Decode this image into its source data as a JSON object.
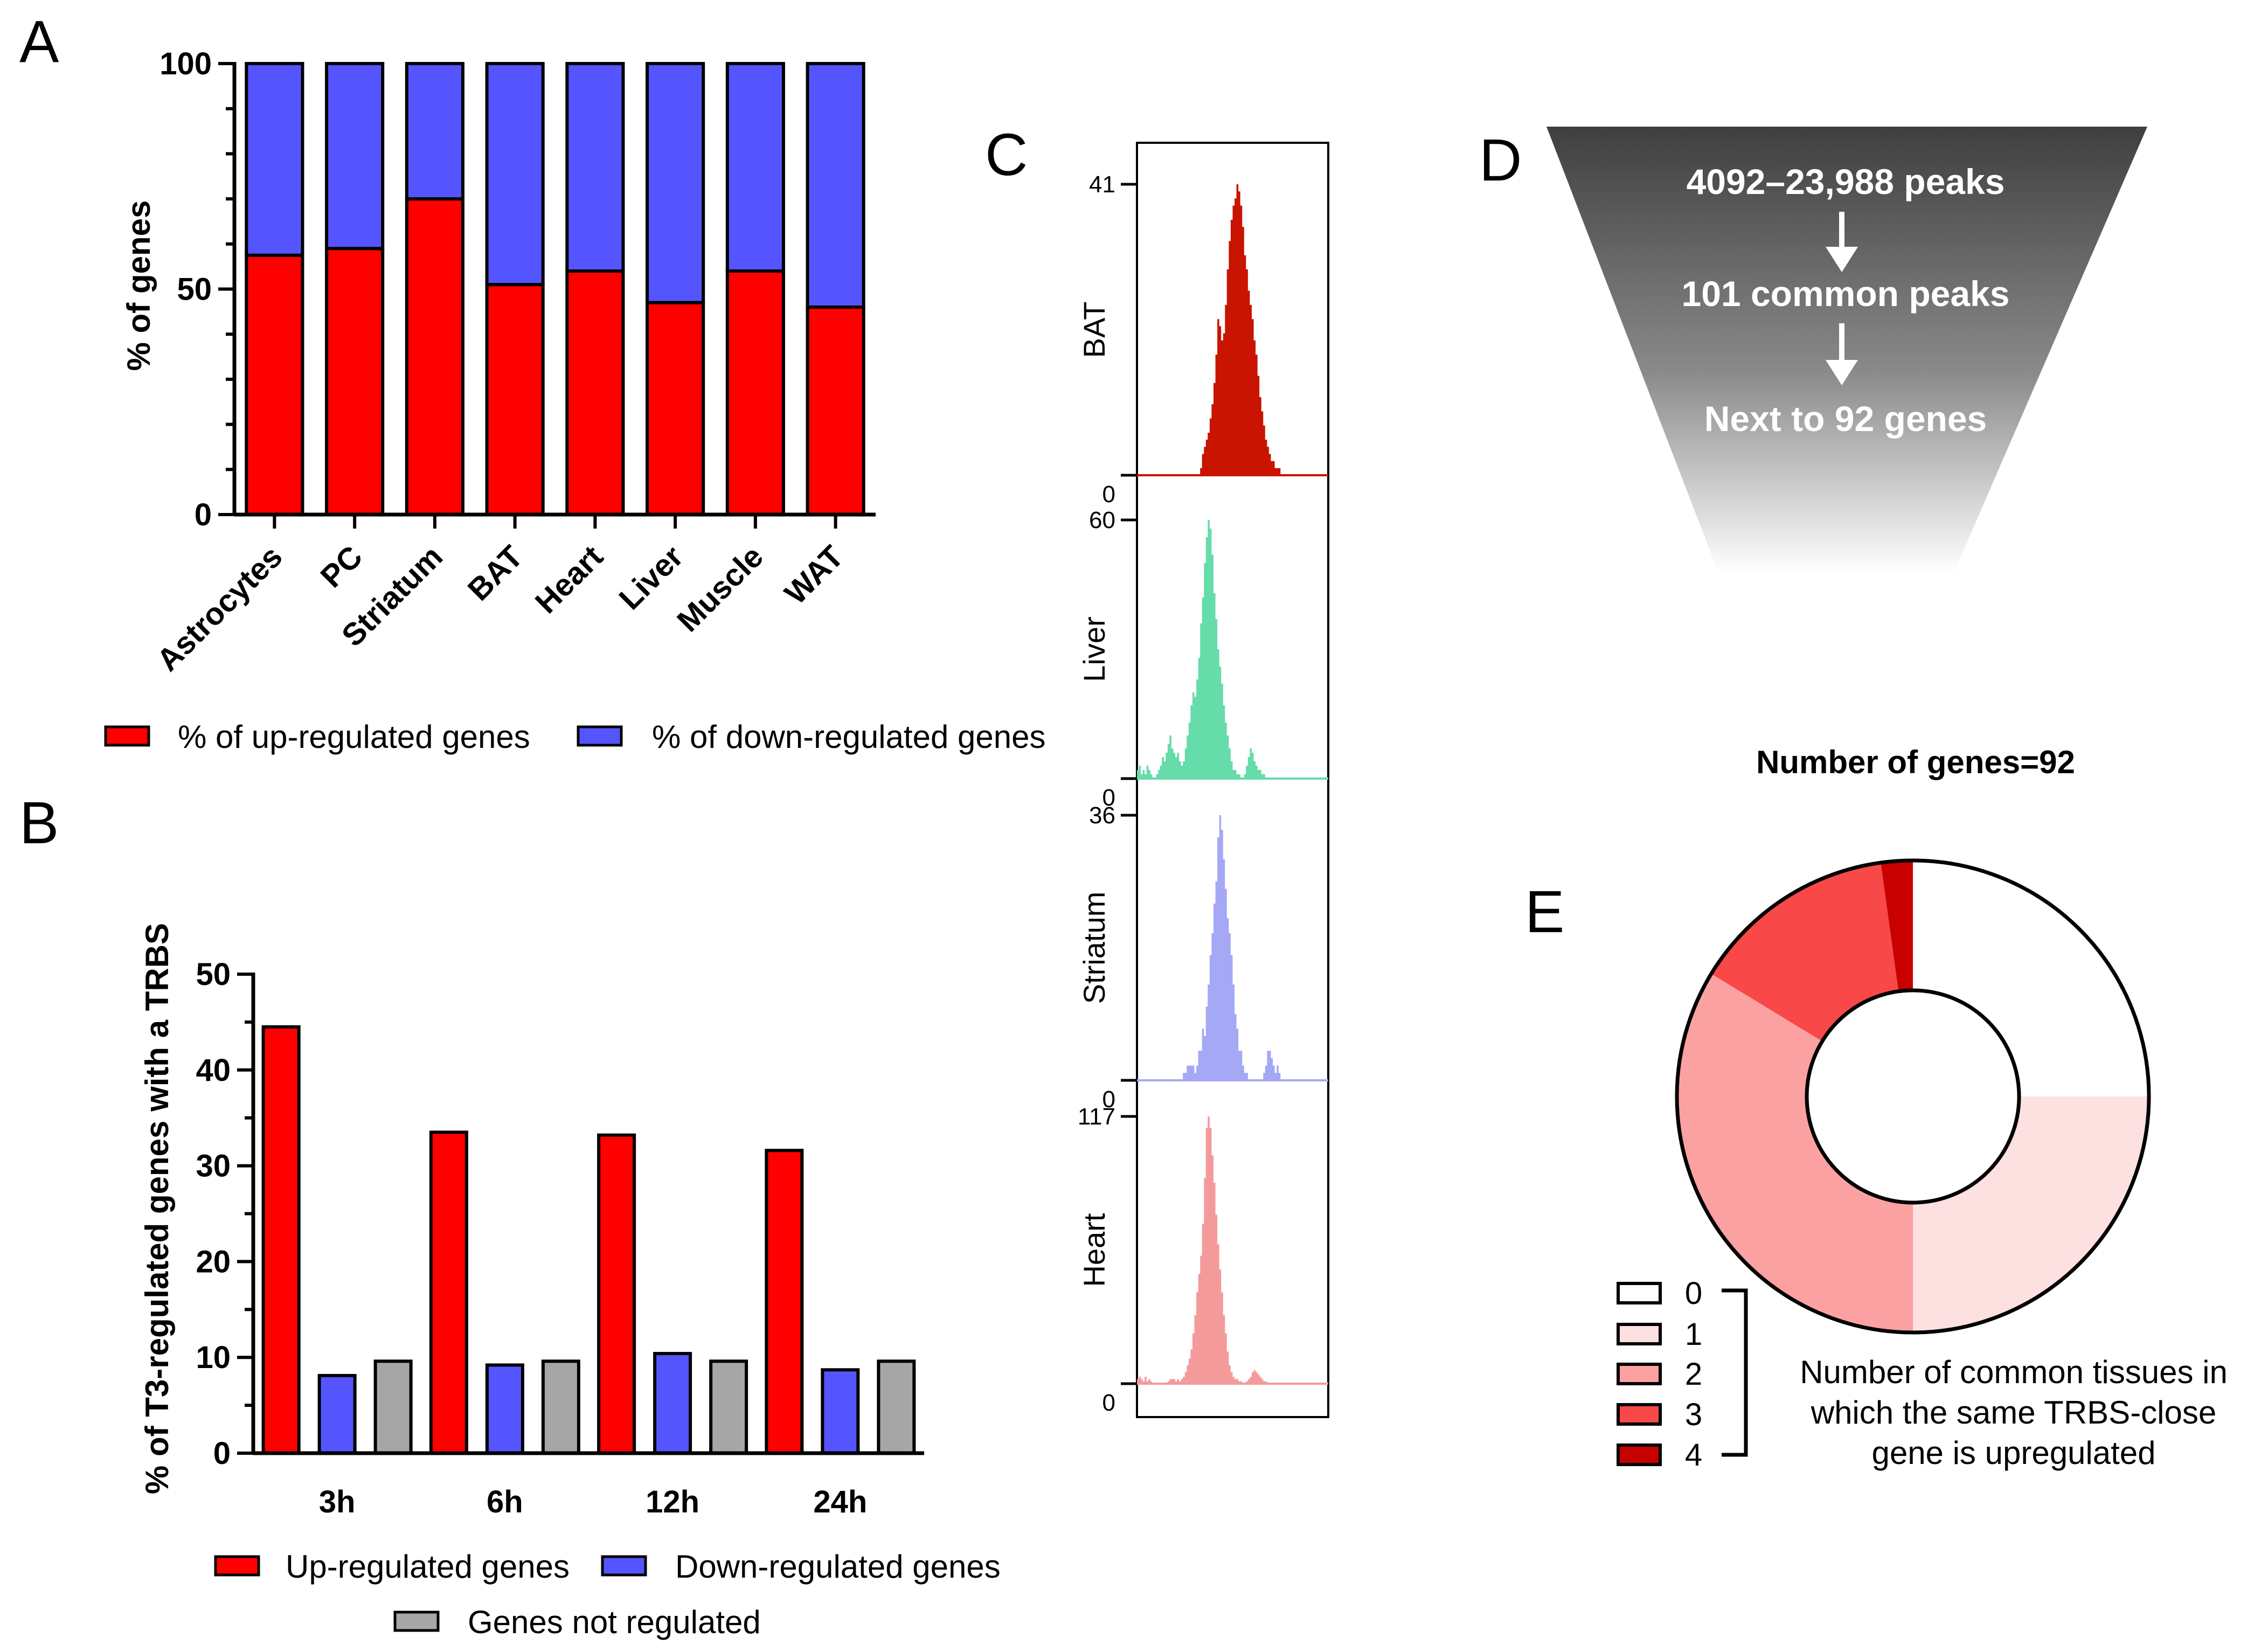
{
  "panel_letters": {
    "a": "A",
    "b": "B",
    "c": "C",
    "d": "D",
    "e": "E"
  },
  "colors": {
    "up": "#ff0000",
    "down": "#5555ff",
    "not_regulated": "#a6a6a6",
    "track_bat": "#c81400",
    "track_liver": "#66dcaa",
    "track_striatum": "#a5a8f5",
    "track_heart": "#f59a9a",
    "funnel_top": "#3f3f3f",
    "pie": [
      "#ffffff",
      "#fde0e0",
      "#fca1a1",
      "#f84848",
      "#c80000"
    ]
  },
  "chart_data": [
    {
      "id": "A",
      "type": "bar",
      "stacked": true,
      "categories": [
        "Astrocytes",
        "PC",
        "Striatum",
        "BAT",
        "Heart",
        "Liver",
        "Muscle",
        "WAT"
      ],
      "series": [
        {
          "name": "% of up-regulated genes",
          "values": [
            57.5,
            59,
            70,
            51,
            54,
            47,
            54,
            46
          ]
        },
        {
          "name": "% of down-regulated genes",
          "values": [
            42.5,
            41,
            30,
            49,
            46,
            53,
            46,
            54
          ]
        }
      ],
      "ylabel": "% of genes",
      "ylim": [
        0,
        100
      ],
      "yticks": [
        0,
        50,
        100
      ],
      "legend_position": "bottom"
    },
    {
      "id": "B",
      "type": "bar",
      "categories": [
        "3h",
        "6h",
        "12h",
        "24h"
      ],
      "series": [
        {
          "name": "Up-regulated genes",
          "values": [
            44.5,
            33.5,
            33.2,
            31.6
          ]
        },
        {
          "name": "Down-regulated genes",
          "values": [
            8.1,
            9.2,
            10.4,
            8.7
          ]
        },
        {
          "name": "Genes not regulated",
          "values": [
            9.6,
            9.6,
            9.6,
            9.6
          ]
        }
      ],
      "ylabel": "% of T3-regulated genes with a TRBS",
      "ylim": [
        0,
        50
      ],
      "yticks": [
        0,
        10,
        20,
        30,
        40,
        50
      ],
      "legend_position": "bottom"
    },
    {
      "id": "C",
      "type": "area",
      "description_free": true,
      "tracks": [
        {
          "name": "BAT",
          "ymax_label": "41",
          "ymin_label": "0",
          "ylim": [
            0,
            41
          ],
          "values": [
            0,
            0,
            0,
            0,
            0,
            0,
            0,
            0,
            0,
            0,
            0,
            0,
            0,
            0,
            0,
            0,
            0,
            0,
            0,
            0,
            0,
            0,
            0,
            0,
            0,
            0,
            0,
            0,
            0,
            0,
            0,
            0,
            0,
            1,
            3,
            4,
            5,
            6,
            8,
            10,
            13,
            17,
            22,
            21,
            19,
            20,
            24,
            29,
            33,
            36,
            38,
            39,
            41,
            40,
            38,
            35,
            31,
            29,
            26,
            24,
            22,
            19,
            17,
            14,
            11,
            9,
            7,
            5,
            4,
            3,
            2,
            2,
            1,
            1,
            1,
            0,
            0,
            0,
            0,
            0,
            0,
            0,
            0,
            0,
            0,
            0,
            0,
            0,
            0,
            0,
            0,
            0,
            0,
            0,
            0,
            0,
            0,
            0,
            0,
            0
          ]
        },
        {
          "name": "Liver",
          "ymax_label": "60",
          "ymin_label": "0",
          "ylim": [
            0,
            60
          ],
          "values": [
            2,
            3,
            1,
            2,
            1,
            3,
            2,
            1,
            0,
            0,
            1,
            2,
            3,
            5,
            4,
            6,
            8,
            10,
            7,
            6,
            5,
            6,
            4,
            3,
            4,
            7,
            10,
            13,
            17,
            20,
            19,
            23,
            28,
            36,
            42,
            50,
            56,
            60,
            58,
            52,
            43,
            37,
            30,
            26,
            22,
            17,
            13,
            10,
            7,
            4,
            2,
            2,
            1,
            1,
            0,
            0,
            1,
            3,
            5,
            7,
            6,
            4,
            3,
            2,
            2,
            1,
            1,
            0,
            0,
            0,
            0,
            0,
            0,
            0,
            0,
            0,
            0,
            0,
            0,
            0,
            0,
            0,
            0,
            0,
            0,
            0,
            0,
            0,
            0,
            0,
            0,
            0,
            0,
            0,
            0,
            0,
            0,
            0,
            0,
            0
          ]
        },
        {
          "name": "Striatum",
          "ymax_label": "36",
          "ymin_label": "0",
          "ylim": [
            0,
            36
          ],
          "values": [
            0,
            0,
            0,
            0,
            0,
            0,
            0,
            0,
            0,
            0,
            0,
            0,
            0,
            0,
            0,
            0,
            0,
            0,
            0,
            0,
            0,
            0,
            0,
            0,
            1,
            1,
            2,
            2,
            2,
            2,
            1,
            2,
            4,
            4,
            7,
            6,
            10,
            13,
            17,
            20,
            24,
            27,
            33,
            36,
            34,
            30,
            26,
            22,
            20,
            17,
            13,
            9,
            7,
            4,
            4,
            2,
            1,
            1,
            0,
            0,
            0,
            0,
            0,
            0,
            0,
            0,
            1,
            2,
            4,
            4,
            3,
            2,
            1,
            2,
            1,
            0,
            0,
            0,
            0,
            0,
            0,
            0,
            0,
            0,
            0,
            0,
            0,
            0,
            0,
            0,
            0,
            0,
            0,
            0,
            0,
            0,
            0,
            0,
            0,
            0
          ]
        },
        {
          "name": "Heart",
          "ymax_label": "117",
          "ymin_label": "0",
          "ylim": [
            0,
            117
          ],
          "values": [
            2,
            3,
            2,
            1,
            3,
            1,
            2,
            1,
            0,
            0,
            0,
            0,
            0,
            0,
            0,
            0,
            1,
            2,
            2,
            2,
            1,
            2,
            1,
            2,
            3,
            5,
            8,
            11,
            15,
            22,
            30,
            40,
            48,
            56,
            70,
            90,
            112,
            117,
            112,
            100,
            88,
            74,
            61,
            50,
            40,
            30,
            22,
            14,
            8,
            5,
            3,
            2,
            2,
            1,
            1,
            0,
            0,
            1,
            2,
            3,
            5,
            6,
            5,
            4,
            3,
            2,
            1,
            1,
            0,
            0,
            0,
            0,
            0,
            0,
            0,
            0,
            0,
            0,
            0,
            0,
            0,
            0,
            0,
            0,
            0,
            0,
            0,
            0,
            0,
            0,
            0,
            0,
            0,
            0,
            0,
            0,
            0,
            0,
            0,
            0
          ]
        }
      ]
    },
    {
      "id": "E",
      "type": "pie",
      "donut": true,
      "title": "Number of genes=92",
      "categories": [
        "0",
        "1",
        "2",
        "3",
        "4"
      ],
      "values": [
        23,
        23,
        31,
        13,
        2
      ],
      "legend_note": "Number of common tissues in which the same TRBS-close gene is upregulated"
    }
  ],
  "funnel": {
    "line1": "4092–23,988 peaks",
    "line2": "101 common peaks",
    "line3": "Next to 92 genes"
  },
  "pie_legend_note_lines": [
    "Number of common tissues in",
    "which the same TRBS-close",
    "gene is upregulated"
  ]
}
